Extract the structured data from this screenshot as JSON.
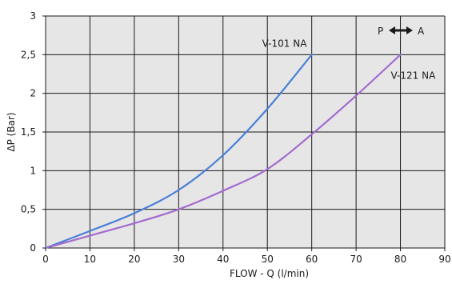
{
  "chart_data": {
    "type": "line",
    "xlabel": "FLOW - Q (l/min)",
    "ylabel": "ΔP (Bar)",
    "xlim": [
      0,
      90
    ],
    "ylim": [
      0,
      3
    ],
    "x_ticks": [
      0,
      10,
      20,
      30,
      40,
      50,
      60,
      70,
      80,
      90
    ],
    "y_ticks": [
      0,
      0.5,
      1,
      1.5,
      2,
      2.5,
      3
    ],
    "y_tick_labels": [
      "0",
      "0,5",
      "1",
      "1,5",
      "2",
      "2,5",
      "3"
    ],
    "grid": true,
    "plot_background": "#e6e6e6",
    "series": [
      {
        "name": "V-101 NA",
        "color": "#4a7fd6",
        "x": [
          0,
          10,
          20,
          30,
          40,
          50,
          60
        ],
        "y": [
          0,
          0.22,
          0.45,
          0.75,
          1.2,
          1.8,
          2.5
        ]
      },
      {
        "name": "V-121 NA",
        "color": "#a26bcf",
        "x": [
          0,
          10,
          20,
          30,
          40,
          50,
          60,
          70,
          80
        ],
        "y": [
          0,
          0.16,
          0.32,
          0.5,
          0.74,
          1.02,
          1.47,
          1.97,
          2.5
        ]
      }
    ],
    "flow_direction": {
      "from": "P",
      "to": "A",
      "arrow": "↔"
    }
  }
}
